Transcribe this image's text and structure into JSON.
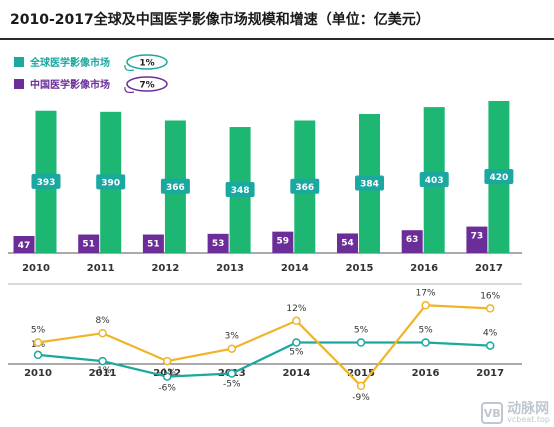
{
  "title": "2010-2017全球及中国医学影像市场规模和增速（单位：亿美元）",
  "colors": {
    "global": "#1db672",
    "china": "#6b2e99",
    "global_label_bg": "#1aa8a0",
    "global_growth": "#1aa8a0",
    "china_growth": "#f0b429",
    "axis": "#555555"
  },
  "legend": [
    {
      "name": "全球医学影像市场",
      "callout": "1%",
      "color": "#1aa8a0"
    },
    {
      "name": "中国医学影像市场",
      "callout": "7%",
      "color": "#6b2e99"
    }
  ],
  "watermark": {
    "logo": "VB",
    "name": "动脉网",
    "url": "vcbeat.top"
  },
  "chart_data": [
    {
      "type": "bar",
      "categories": [
        "2010",
        "2011",
        "2012",
        "2013",
        "2014",
        "2015",
        "2016",
        "2017"
      ],
      "series": [
        {
          "name": "全球医学影像市场",
          "values": [
            393,
            390,
            366,
            348,
            366,
            384,
            403,
            420
          ]
        },
        {
          "name": "中国医学影像市场",
          "values": [
            47,
            51,
            51,
            53,
            59,
            54,
            63,
            73
          ]
        }
      ],
      "ylim": [
        0,
        430
      ]
    },
    {
      "type": "line",
      "categories": [
        "2010",
        "2011",
        "2012",
        "2013",
        "2014",
        "2015",
        "2016",
        "2017"
      ],
      "series": [
        {
          "name": "全球医学影像市场",
          "values": [
            1,
            -1,
            -6,
            -5,
            5,
            5,
            5,
            4
          ],
          "unit": "%"
        },
        {
          "name": "中国医学影像市场",
          "values": [
            5,
            8,
            -1,
            3,
            12,
            -9,
            17,
            16
          ],
          "unit": "%"
        }
      ]
    }
  ]
}
